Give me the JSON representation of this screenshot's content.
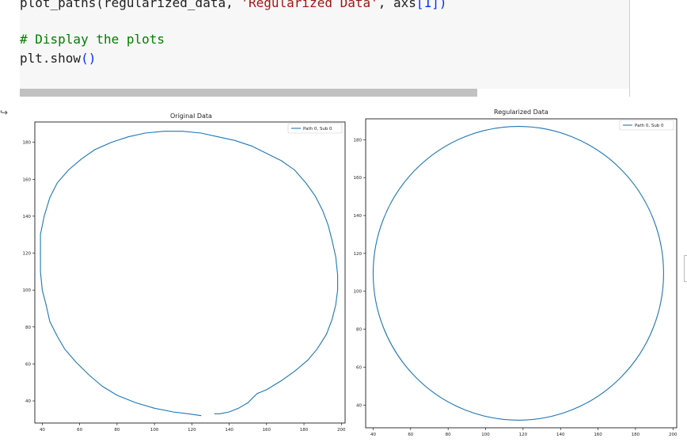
{
  "code": {
    "line1_fn": "plot_paths(regularized_data, ",
    "line1_str": "'Regularized Data'",
    "line1_args": ", axs",
    "line1_idx": "[1])",
    "line2_comment": "# Display the plots",
    "line3_pre": "plt.show",
    "line3_paren": "()"
  },
  "output_marker": "↪",
  "chart_data": [
    {
      "type": "line",
      "title": "Original Data",
      "legend": [
        "Path 0, Sub 0"
      ],
      "legend_position": "top-right",
      "series": [
        {
          "name": "Path 0, Sub 0",
          "color": "#1f77b4",
          "points": [
            [
              125,
              32
            ],
            [
              118,
              33
            ],
            [
              110,
              34
            ],
            [
              100,
              36
            ],
            [
              90,
              39
            ],
            [
              80,
              43
            ],
            [
              72,
              48
            ],
            [
              65,
              54
            ],
            [
              58,
              61
            ],
            [
              52,
              68
            ],
            [
              48,
              75
            ],
            [
              44,
              83
            ],
            [
              42,
              92
            ],
            [
              40,
              100
            ],
            [
              39,
              110
            ],
            [
              39,
              120
            ],
            [
              39,
              130
            ],
            [
              41,
              140
            ],
            [
              44,
              150
            ],
            [
              48,
              158
            ],
            [
              54,
              165
            ],
            [
              61,
              171
            ],
            [
              68,
              176
            ],
            [
              77,
              180
            ],
            [
              86,
              183
            ],
            [
              95,
              185
            ],
            [
              105,
              186
            ],
            [
              115,
              186
            ],
            [
              125,
              185
            ],
            [
              134,
              183
            ],
            [
              143,
              181
            ],
            [
              152,
              178
            ],
            [
              160,
              174
            ],
            [
              168,
              170
            ],
            [
              175,
              165
            ],
            [
              181,
              158
            ],
            [
              186,
              151
            ],
            [
              190,
              143
            ],
            [
              193,
              135
            ],
            [
              195,
              127
            ],
            [
              197,
              118
            ],
            [
              198,
              108
            ],
            [
              198,
              100
            ],
            [
              197,
              92
            ],
            [
              195,
              84
            ],
            [
              192,
              76
            ],
            [
              187,
              68
            ],
            [
              182,
              62
            ],
            [
              175,
              56
            ],
            [
              168,
              51
            ],
            [
              160,
              46
            ],
            [
              155,
              44
            ],
            [
              150,
              39
            ],
            [
              145,
              36
            ],
            [
              140,
              34
            ],
            [
              135,
              33
            ],
            [
              132,
              33
            ]
          ]
        }
      ],
      "xlim": [
        36,
        202
      ],
      "ylim": [
        28,
        191
      ],
      "xticks": [
        40,
        60,
        80,
        100,
        120,
        140,
        160,
        180,
        200
      ],
      "yticks": [
        40,
        60,
        80,
        100,
        120,
        140,
        160,
        180
      ],
      "grid": false
    },
    {
      "type": "line",
      "title": "Regularized Data",
      "legend": [
        "Path 0, Sub 0"
      ],
      "legend_position": "top-right",
      "series": [
        {
          "name": "Path 0, Sub 0",
          "color": "#1f77b4",
          "shape": "circle",
          "center": [
            117.5,
            109.5
          ],
          "radius": 77.5
        }
      ],
      "xlim": [
        36,
        202
      ],
      "ylim": [
        28,
        191
      ],
      "xticks": [
        40,
        60,
        80,
        100,
        120,
        140,
        160,
        180,
        200
      ],
      "yticks": [
        40,
        60,
        80,
        100,
        120,
        140,
        160,
        180
      ],
      "grid": false
    }
  ]
}
